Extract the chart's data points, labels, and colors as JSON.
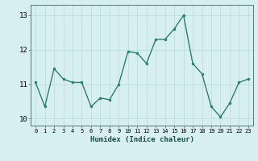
{
  "x": [
    0,
    1,
    2,
    3,
    4,
    5,
    6,
    7,
    8,
    9,
    10,
    11,
    12,
    13,
    14,
    15,
    16,
    17,
    18,
    19,
    20,
    21,
    22,
    23
  ],
  "y": [
    11.05,
    10.35,
    11.45,
    11.15,
    11.05,
    11.05,
    10.35,
    10.6,
    10.55,
    11.0,
    11.95,
    11.9,
    11.6,
    12.3,
    12.3,
    12.6,
    13.0,
    11.6,
    11.3,
    10.35,
    10.05,
    10.45,
    11.05,
    11.15
  ],
  "xlabel": "Humidex (Indice chaleur)",
  "line_color": "#2e7d6e",
  "marker_color": "#2e7d6e",
  "bg_color": "#d7eff0",
  "grid_color": "#b8dfe2",
  "ylim": [
    9.8,
    13.3
  ],
  "xlim": [
    -0.5,
    23.5
  ],
  "yticks": [
    10,
    11,
    12,
    13
  ],
  "xticks": [
    0,
    1,
    2,
    3,
    4,
    5,
    6,
    7,
    8,
    9,
    10,
    11,
    12,
    13,
    14,
    15,
    16,
    17,
    18,
    19,
    20,
    21,
    22,
    23
  ],
  "xtick_labels": [
    "0",
    "1",
    "2",
    "3",
    "4",
    "5",
    "6",
    "7",
    "8",
    "9",
    "10",
    "11",
    "12",
    "13",
    "14",
    "15",
    "16",
    "17",
    "18",
    "19",
    "20",
    "21",
    "22",
    "23"
  ],
  "ytick_labels": [
    "10",
    "11",
    "12",
    "13"
  ],
  "xlabel_fontsize": 6.5,
  "xtick_fontsize": 5.0,
  "ytick_fontsize": 6.5
}
